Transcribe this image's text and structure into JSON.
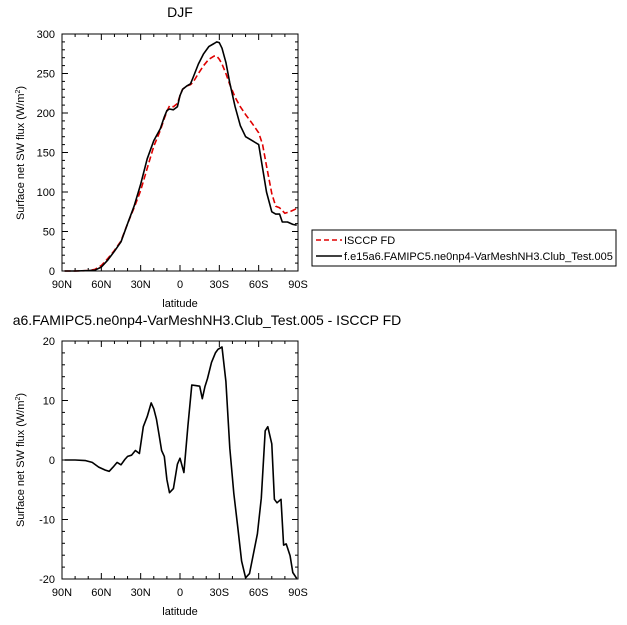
{
  "chart_data": [
    {
      "type": "line",
      "title": "DJF",
      "xlabel": "latitude",
      "ylabel": "Surface net SW flux (W/m",
      "ylabel_sup": "2",
      "ylabel_close": ")",
      "xlim": [
        -90,
        90
      ],
      "ylim": [
        0,
        300
      ],
      "x_ticks": [
        -90,
        -60,
        -30,
        0,
        30,
        60,
        90
      ],
      "x_tick_labels": [
        "90N",
        "60N",
        "30N",
        "0",
        "30S",
        "60S",
        "90S"
      ],
      "y_ticks": [
        0,
        50,
        100,
        150,
        200,
        250,
        300
      ],
      "y_tick_labels": [
        "0",
        "50",
        "100",
        "150",
        "200",
        "250",
        "300"
      ],
      "grid": false,
      "legend_position": "right, outside plot",
      "series": [
        {
          "name": "ISCCP FD",
          "color": "#e00000",
          "dash": "dashed",
          "x": [
            -88,
            -80,
            -70,
            -65,
            -60,
            -55,
            -50,
            -45,
            -40,
            -35,
            -30,
            -25,
            -20,
            -15,
            -12,
            -10,
            -8,
            -5,
            -2,
            0,
            2,
            5,
            8,
            10,
            14,
            18,
            22,
            26,
            28,
            30,
            32,
            35,
            38,
            42,
            46,
            50,
            55,
            60,
            63,
            66,
            70,
            73,
            76,
            80,
            85,
            89
          ],
          "y": [
            0,
            0,
            0.5,
            2,
            7,
            16,
            26,
            38,
            60,
            80,
            102,
            130,
            158,
            178,
            193,
            202,
            209,
            208,
            212,
            222,
            230,
            234,
            236,
            239,
            250,
            260,
            268,
            272,
            272,
            268,
            262,
            250,
            236,
            220,
            208,
            198,
            187,
            175,
            160,
            133,
            98,
            82,
            80,
            73,
            76,
            79
          ]
        },
        {
          "name": "f.e15a6.FAMIPC5.ne0np4-VarMeshNH3.Club_Test.005",
          "color": "#000000",
          "dash": "solid",
          "x": [
            -88,
            -80,
            -70,
            -65,
            -60,
            -55,
            -50,
            -45,
            -40,
            -35,
            -30,
            -25,
            -20,
            -15,
            -12,
            -10,
            -8,
            -5,
            -2,
            0,
            2,
            5,
            8,
            10,
            14,
            18,
            22,
            26,
            28,
            30,
            32,
            35,
            38,
            42,
            46,
            50,
            55,
            60,
            63,
            66,
            70,
            73,
            76,
            78,
            82,
            86,
            89
          ],
          "y": [
            0,
            0,
            0.5,
            1,
            5,
            14,
            25,
            37,
            60,
            82,
            110,
            142,
            165,
            180,
            195,
            203,
            205,
            204,
            208,
            222,
            230,
            234,
            237,
            245,
            262,
            275,
            284,
            288,
            290,
            289,
            282,
            264,
            238,
            208,
            184,
            170,
            165,
            160,
            130,
            100,
            75,
            72,
            72,
            62,
            62,
            59,
            58
          ]
        }
      ]
    },
    {
      "type": "line",
      "title": "a6.FAMIPC5.ne0np4-VarMeshNH3.Club_Test.005 - ISCCP FD",
      "xlabel": "latitude",
      "ylabel": "Surface net SW flux (W/m",
      "ylabel_sup": "2",
      "ylabel_close": ")",
      "xlim": [
        -90,
        90
      ],
      "ylim": [
        -20,
        20
      ],
      "x_ticks": [
        -90,
        -60,
        -30,
        0,
        30,
        60,
        90
      ],
      "x_tick_labels": [
        "90N",
        "60N",
        "30N",
        "0",
        "30S",
        "60S",
        "90S"
      ],
      "y_ticks": [
        -20,
        -10,
        0,
        10,
        20
      ],
      "y_tick_labels": [
        "-20",
        "-10",
        "0",
        "10",
        "20"
      ],
      "grid": false,
      "series": [
        {
          "color": "#000000",
          "dash": "solid",
          "x": [
            -88,
            -80,
            -72,
            -67,
            -62,
            -57,
            -54,
            -51,
            -48,
            -45,
            -42,
            -40,
            -37,
            -34,
            -31,
            -28,
            -25,
            -22,
            -20,
            -18,
            -16,
            -14,
            -12,
            -10,
            -8,
            -5,
            -2,
            0,
            3,
            6,
            9,
            12,
            15,
            17,
            19,
            21,
            24,
            27,
            29,
            32,
            35,
            38,
            41,
            44,
            47,
            50,
            53,
            56,
            59,
            62,
            65,
            67,
            70,
            72,
            74,
            77,
            79,
            81,
            84,
            86,
            89
          ],
          "y": [
            0,
            0,
            -0.1,
            -0.4,
            -1.2,
            -1.7,
            -1.9,
            -1.2,
            -0.4,
            -0.8,
            0.1,
            0.6,
            0.8,
            1.6,
            1.1,
            5.6,
            7.3,
            9.6,
            8.6,
            6.9,
            4.3,
            1.6,
            0.6,
            -3.3,
            -5.5,
            -4.8,
            -0.7,
            0.3,
            -2.1,
            5.7,
            12.6,
            12.5,
            12.4,
            10.3,
            12.3,
            13.7,
            16.4,
            18.0,
            18.6,
            19.0,
            13.2,
            2.0,
            -5.6,
            -11.2,
            -17.0,
            -19.8,
            -19.1,
            -15.8,
            -12.4,
            -6.4,
            4.9,
            5.6,
            2.7,
            -6.6,
            -7.2,
            -6.6,
            -14.3,
            -14.1,
            -16.1,
            -18.9,
            -19.9
          ]
        }
      ]
    }
  ]
}
